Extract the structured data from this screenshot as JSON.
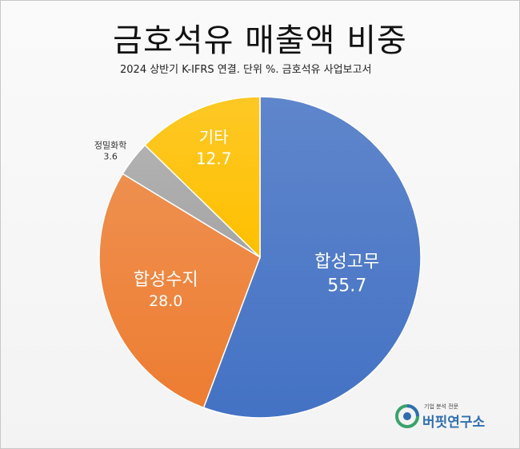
{
  "title": "금호석유 매출액 비중",
  "subtitle": "2024 상반기 K-IFRS 연결. 단위 %. 금호석유 사업보고서",
  "logo": {
    "tagline": "기업 분석 전문",
    "name": "버핏연구소"
  },
  "chart_data": {
    "type": "pie",
    "title": "금호석유 매출액 비중",
    "subtitle": "2024 상반기 K-IFRS 연결. 단위 %. 금호석유 사업보고서",
    "unit": "%",
    "start": "12 o'clock",
    "direction": "clockwise",
    "slices": [
      {
        "label": "합성고무",
        "value": 55.7,
        "color": "#4472C4",
        "display": "55.7"
      },
      {
        "label": "합성수지",
        "value": 28.0,
        "color": "#ED7D31",
        "display": "28.0"
      },
      {
        "label": "정밀화학",
        "value": 3.6,
        "color": "#A5A5A5",
        "display": "3.6"
      },
      {
        "label": "기타",
        "value": 12.7,
        "color": "#FFC000",
        "display": "12.7"
      }
    ]
  }
}
